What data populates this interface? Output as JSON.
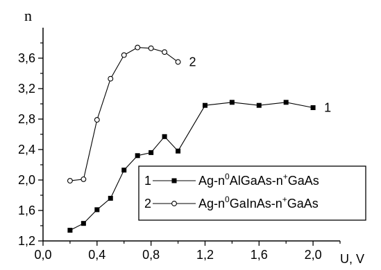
{
  "chart_data": {
    "type": "line",
    "title": "",
    "xlabel": "U, V",
    "ylabel": "n",
    "xlim": [
      0.0,
      2.2
    ],
    "ylim": [
      1.2,
      4.0
    ],
    "grid": false,
    "legend_position": "bottom-right",
    "x_ticks": [
      "0,0",
      "0,4",
      "0,8",
      "1,2",
      "1,6",
      "2,0"
    ],
    "y_ticks": [
      "1,2",
      "1,6",
      "2,0",
      "2,4",
      "2,8",
      "3,2",
      "3,6"
    ],
    "series": [
      {
        "name": "Ag-n0AlGaAs-n+GaAs",
        "label": "1",
        "marker": "filled-square",
        "legend": {
          "number": "1",
          "part1": "Ag-n",
          "sup1": "0",
          "part2": "AlGaAs-n",
          "sup2": "+",
          "part3": "GaAs"
        },
        "x": [
          0.2,
          0.3,
          0.4,
          0.5,
          0.6,
          0.7,
          0.8,
          0.9,
          1.0,
          1.2,
          1.4,
          1.6,
          1.8,
          2.0
        ],
        "y": [
          1.34,
          1.43,
          1.61,
          1.76,
          2.13,
          2.32,
          2.36,
          2.57,
          2.38,
          2.98,
          3.02,
          2.98,
          3.02,
          2.95
        ]
      },
      {
        "name": "Ag-n0GaInAs-n+GaAs",
        "label": "2",
        "marker": "open-circle",
        "legend": {
          "number": "2",
          "part1": "Ag-n",
          "sup1": "0",
          "part2": "GaInAs-n",
          "sup2": "+",
          "part3": "GaAs"
        },
        "x": [
          0.2,
          0.3,
          0.4,
          0.5,
          0.6,
          0.7,
          0.8,
          0.9,
          1.0
        ],
        "y": [
          1.99,
          2.01,
          2.79,
          3.33,
          3.64,
          3.74,
          3.73,
          3.68,
          3.55
        ]
      }
    ]
  }
}
